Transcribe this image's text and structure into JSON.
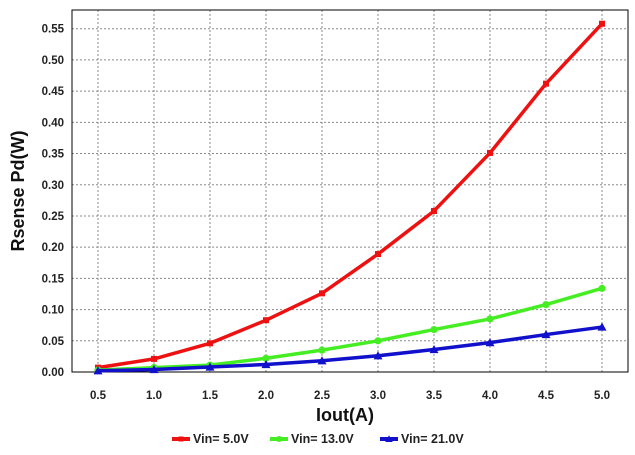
{
  "chart_data": {
    "type": "line",
    "title": "",
    "xlabel": "Iout(A)",
    "ylabel": "Rsense Pd(W)",
    "x": [
      0.5,
      1.0,
      1.5,
      2.0,
      2.5,
      3.0,
      3.5,
      4.0,
      4.5,
      5.0
    ],
    "x_tick_labels": [
      "0.5",
      "1.0",
      "1.5",
      "2.0",
      "2.5",
      "3.0",
      "3.5",
      "4.0",
      "4.5",
      "5.0"
    ],
    "y_ticks": [
      0.0,
      0.05,
      0.1,
      0.15,
      0.2,
      0.25,
      0.3,
      0.35,
      0.4,
      0.45,
      0.5,
      0.55
    ],
    "y_tick_labels": [
      "0.00",
      "0.05",
      "0.10",
      "0.15",
      "0.20",
      "0.25",
      "0.30",
      "0.35",
      "0.40",
      "0.45",
      "0.50",
      "0.55"
    ],
    "xlim": [
      0.5,
      5.0
    ],
    "ylim": [
      0.0,
      0.58
    ],
    "grid": true,
    "legend_position": "bottom",
    "series": [
      {
        "name": "Vin= 5.0V",
        "color": "#ee1111",
        "marker": "square",
        "values": [
          0.007,
          0.021,
          0.046,
          0.083,
          0.126,
          0.189,
          0.258,
          0.351,
          0.462,
          0.558
        ]
      },
      {
        "name": "Vin= 13.0V",
        "color": "#44ee22",
        "marker": "circle",
        "values": [
          0.003,
          0.007,
          0.011,
          0.022,
          0.035,
          0.05,
          0.068,
          0.085,
          0.108,
          0.134
        ]
      },
      {
        "name": "Vin= 21.0V",
        "color": "#1111cc",
        "marker": "triangle",
        "values": [
          0.002,
          0.004,
          0.008,
          0.012,
          0.018,
          0.026,
          0.036,
          0.047,
          0.06,
          0.072
        ]
      }
    ]
  }
}
